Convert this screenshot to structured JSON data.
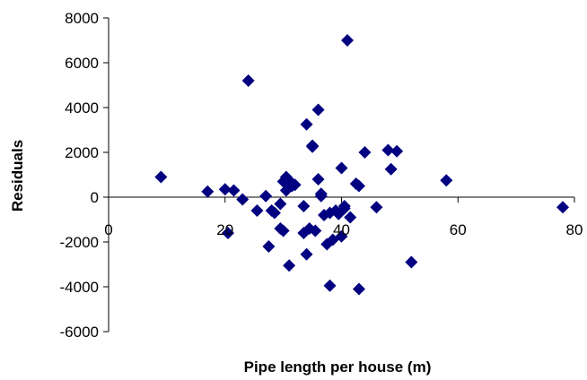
{
  "colors": {
    "marker": "#000080",
    "axis": "#000000",
    "background": "#ffffff"
  },
  "chart_data": {
    "type": "scatter",
    "title": "",
    "xlabel": "Pipe length per house (m)",
    "ylabel": "Residuals",
    "xlim": [
      0,
      80
    ],
    "ylim": [
      -6000,
      8000
    ],
    "xticks": [
      0,
      20,
      40,
      60,
      80
    ],
    "yticks": [
      -6000,
      -4000,
      -2000,
      0,
      2000,
      4000,
      6000,
      8000
    ],
    "xtick_labels": [
      "0",
      "20",
      "40",
      "60",
      "80"
    ],
    "ytick_labels": [
      "-6000",
      "-4000",
      "-2000",
      "0",
      "2000",
      "4000",
      "6000",
      "8000"
    ],
    "grid": false,
    "legend": "none",
    "marker": "diamond",
    "series": [
      {
        "x": [
          9,
          17,
          20,
          20.5,
          21.5,
          23,
          24,
          25.5,
          27,
          27.5,
          28,
          28.5,
          29.5,
          29.5,
          30,
          30,
          30.5,
          30.5,
          31,
          31,
          31.5,
          32,
          33.5,
          33.5,
          34,
          34,
          34.5,
          35,
          35,
          35.5,
          36,
          36,
          36.5,
          36.5,
          37,
          37.5,
          38,
          38,
          38.5,
          39,
          39.5,
          40,
          40,
          40.5,
          40.5,
          41,
          41.5,
          42.5,
          43,
          43,
          44,
          46,
          48,
          48.5,
          49.5,
          52,
          58,
          78
        ],
        "y": [
          900,
          250,
          350,
          -1600,
          300,
          -100,
          5200,
          -600,
          50,
          -2200,
          -600,
          -700,
          -300,
          -1400,
          -1500,
          700,
          900,
          300,
          750,
          -3050,
          500,
          550,
          -400,
          -1600,
          3250,
          -2550,
          -1400,
          2300,
          2250,
          -1500,
          3900,
          800,
          150,
          50,
          -800,
          -2100,
          -700,
          -3950,
          -1900,
          -600,
          -750,
          1300,
          -1750,
          -400,
          -500,
          7000,
          -900,
          600,
          500,
          -4100,
          2000,
          -450,
          2100,
          1250,
          2050,
          -2900,
          750,
          -450
        ]
      }
    ]
  }
}
